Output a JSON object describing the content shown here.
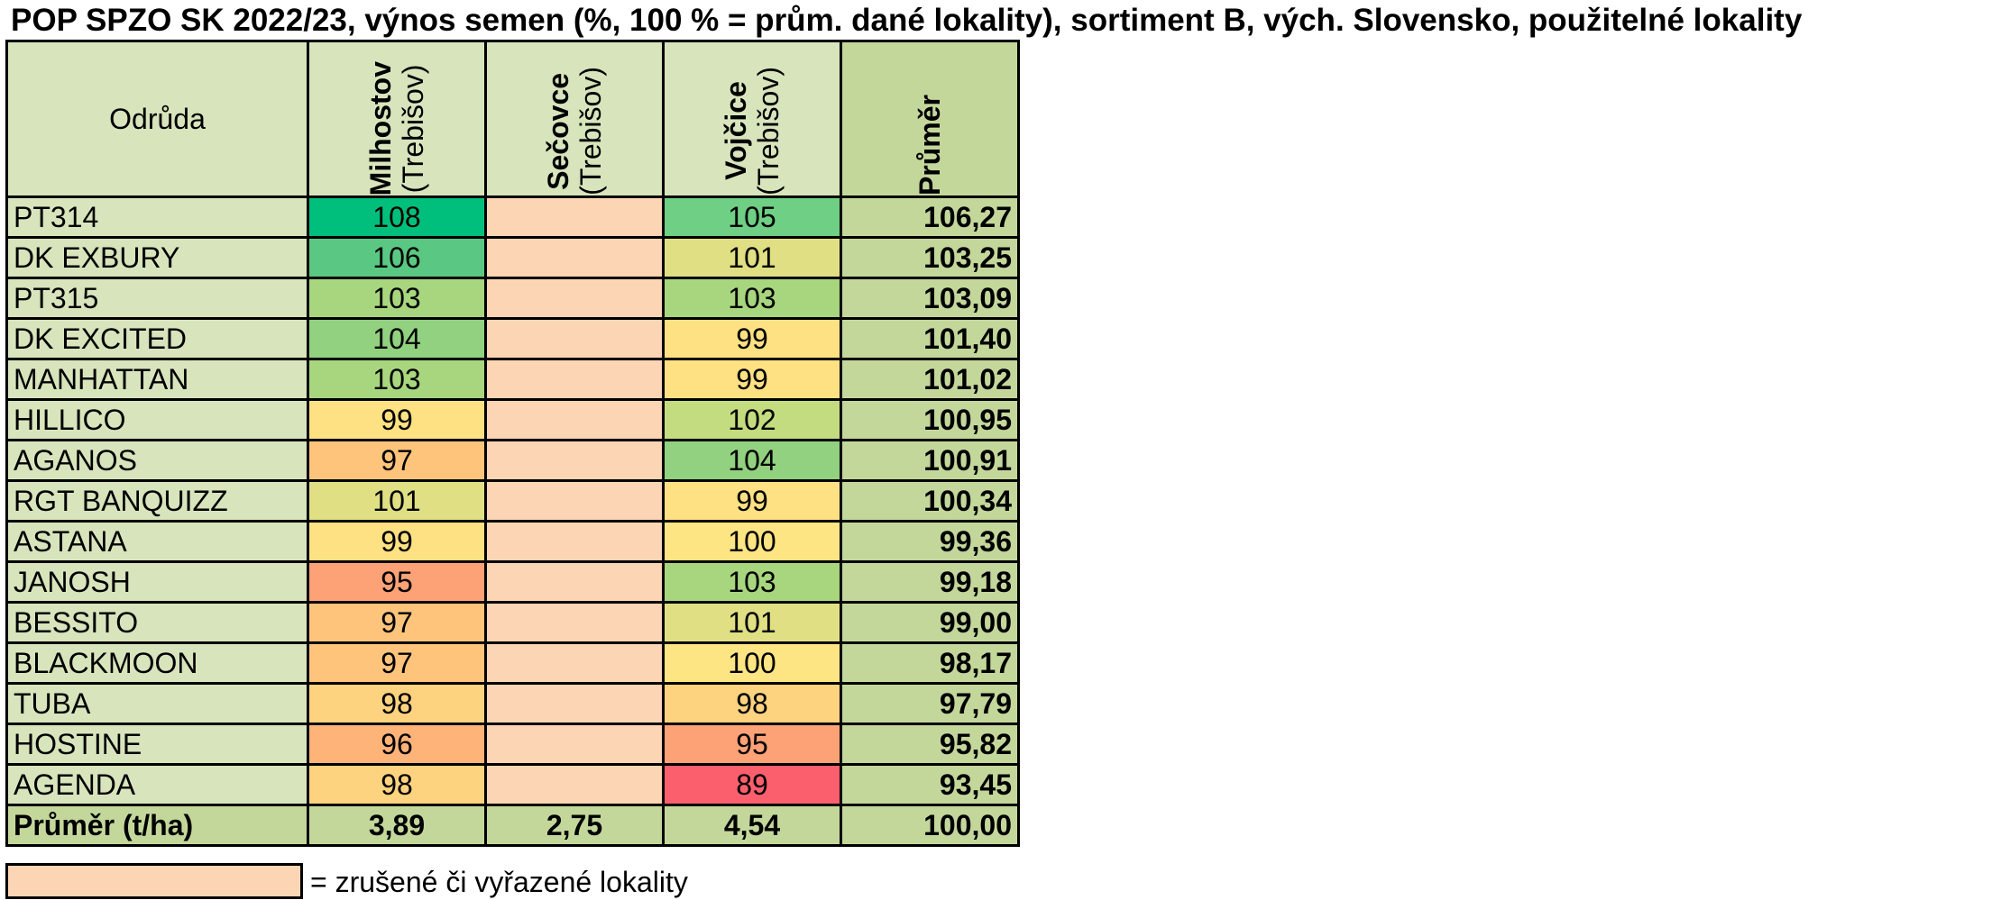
{
  "title": "POP SPZO SK 2022/23, výnos semen (%, 100 % = prům. dané lokality), sortiment B, vých. Slovensko, použitelné lokality",
  "colors": {
    "header_bg": "#d8e4bc",
    "avg_bg": "#c4d79b",
    "cancelled_bg": "#fcd5b4"
  },
  "chart_data": {
    "type": "table",
    "title": "POP SPZO SK 2022/23, výnos semen (%, 100 % = prům. dané lokality), sortiment B, vých. Slovensko, použitelné lokality",
    "columns": {
      "variety_header": "Odrůda",
      "locations": [
        {
          "name": "Milhostov",
          "district": "(Trebišov)"
        },
        {
          "name": "Sečovce",
          "district": "(Trebišov)"
        },
        {
          "name": "Vojčice",
          "district": "(Trebišov)"
        }
      ],
      "average_header": "Průměr"
    },
    "rows": [
      {
        "variety": "PT314",
        "values": [
          108,
          null,
          105
        ],
        "average": "106,27",
        "colors": [
          "#00bf7d",
          null,
          "#6fcf85"
        ]
      },
      {
        "variety": "DK EXBURY",
        "values": [
          106,
          null,
          101
        ],
        "average": "103,25",
        "colors": [
          "#5ac882",
          null,
          "#e0df84"
        ]
      },
      {
        "variety": "PT315",
        "values": [
          103,
          null,
          103
        ],
        "average": "103,09",
        "colors": [
          "#a8d67e",
          null,
          "#a8d67e"
        ]
      },
      {
        "variety": "DK EXCITED",
        "values": [
          104,
          null,
          99
        ],
        "average": "101,40",
        "colors": [
          "#91d17f",
          null,
          "#fee182"
        ]
      },
      {
        "variety": "MANHATTAN",
        "values": [
          103,
          null,
          99
        ],
        "average": "101,02",
        "colors": [
          "#a8d67e",
          null,
          "#fee182"
        ]
      },
      {
        "variety": "HILLICO",
        "values": [
          99,
          null,
          102
        ],
        "average": "100,95",
        "colors": [
          "#fee182",
          null,
          "#c4dc80"
        ]
      },
      {
        "variety": "AGANOS",
        "values": [
          97,
          null,
          104
        ],
        "average": "100,91",
        "colors": [
          "#fec47b",
          null,
          "#91d17f"
        ]
      },
      {
        "variety": "RGT BANQUIZZ",
        "values": [
          101,
          null,
          99
        ],
        "average": "100,34",
        "colors": [
          "#e0df84",
          null,
          "#fee182"
        ]
      },
      {
        "variety": "ASTANA",
        "values": [
          99,
          null,
          100
        ],
        "average": "99,36",
        "colors": [
          "#fee182",
          null,
          "#fee583"
        ]
      },
      {
        "variety": "JANOSH",
        "values": [
          95,
          null,
          103
        ],
        "average": "99,18",
        "colors": [
          "#fda277",
          null,
          "#a8d67e"
        ]
      },
      {
        "variety": "BESSITO",
        "values": [
          97,
          null,
          101
        ],
        "average": "99,00",
        "colors": [
          "#fec47b",
          null,
          "#e0df84"
        ]
      },
      {
        "variety": "BLACKMOON",
        "values": [
          97,
          null,
          100
        ],
        "average": "98,17",
        "colors": [
          "#fec47b",
          null,
          "#fee583"
        ]
      },
      {
        "variety": "TUBA",
        "values": [
          98,
          null,
          98
        ],
        "average": "97,79",
        "colors": [
          "#fed37f",
          null,
          "#fed37f"
        ]
      },
      {
        "variety": "HOSTINE",
        "values": [
          96,
          null,
          95
        ],
        "average": "95,82",
        "colors": [
          "#feb379",
          null,
          "#fda277"
        ]
      },
      {
        "variety": "AGENDA",
        "values": [
          98,
          null,
          89
        ],
        "average": "93,45",
        "colors": [
          "#fed37f",
          null,
          "#fb5f6e"
        ]
      }
    ],
    "footer": {
      "label": "Průměr (t/ha)",
      "values": [
        "3,89",
        "2,75",
        "4,54"
      ],
      "average": "100,00"
    }
  },
  "legend": {
    "text": "= zrušené či vyřazené lokality"
  }
}
